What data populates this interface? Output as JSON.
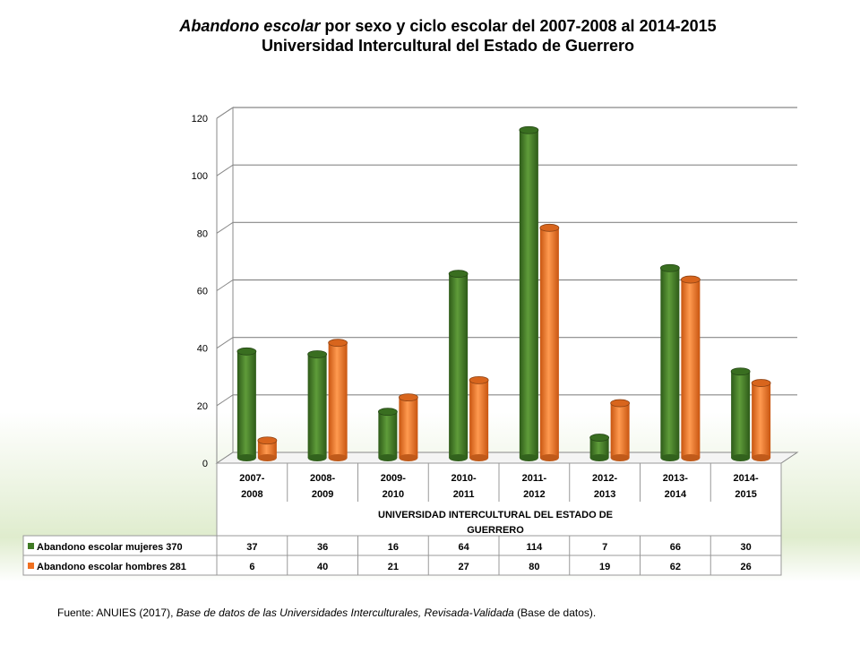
{
  "title": {
    "italic_part": "Abandono escolar",
    "rest_part": " por sexo y ciclo escolar del  2007-2008 al 2014-2015",
    "line2": "Universidad Intercultural del Estado de Guerrero"
  },
  "chart_data": {
    "type": "bar",
    "categories": [
      [
        "2007-",
        "2008"
      ],
      [
        "2008-",
        "2009"
      ],
      [
        "2009-",
        "2010"
      ],
      [
        "2010-",
        "2011"
      ],
      [
        "2011-",
        "2012"
      ],
      [
        "2012-",
        "2013"
      ],
      [
        "2013-",
        "2014"
      ],
      [
        "2014-",
        "2015"
      ]
    ],
    "group_label": [
      "UNIVERSIDAD INTERCULTURAL DEL ESTADO DE",
      "GUERRERO"
    ],
    "series": [
      {
        "name": "Abandono escolar mujeres 370",
        "color": "#3f7a24",
        "values": [
          37,
          36,
          16,
          64,
          114,
          7,
          66,
          30
        ]
      },
      {
        "name": "Abandono escolar hombres  281",
        "color": "#f07020",
        "values": [
          6,
          40,
          21,
          27,
          80,
          19,
          62,
          26
        ]
      }
    ],
    "ylim": [
      0,
      120
    ],
    "yticks": [
      0,
      20,
      40,
      60,
      80,
      100,
      120
    ],
    "grid": true,
    "legend": "data-table"
  },
  "source": {
    "prefix": "Fuente: ANUIES (2017),  ",
    "italic": "Base de datos de las Universidades  Interculturales, Revisada-Validada",
    "suffix": "  (Base de datos)."
  }
}
